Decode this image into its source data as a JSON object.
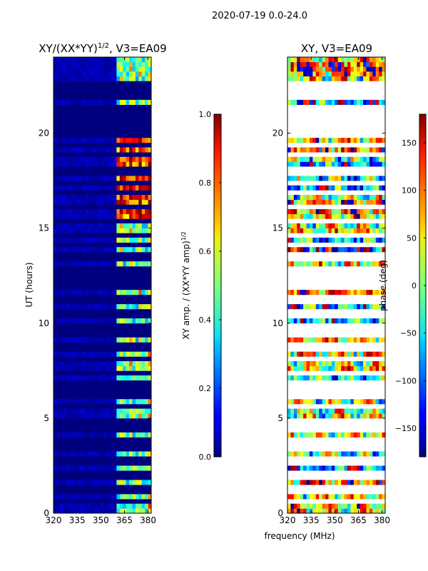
{
  "suptitle": "2020-07-19 0.0-24.0",
  "xlabel": "frequency (MHz)",
  "chart_data": [
    {
      "type": "heatmap",
      "title_main": "XY/(XX*YY)",
      "title_exp": "1/2",
      "title_rest": ", V3=EA09",
      "ylabel": "UT (hours)",
      "xlim": [
        320,
        382
      ],
      "ylim": [
        0,
        24
      ],
      "xticks": [
        "320",
        "335",
        "350",
        "365",
        "380"
      ],
      "xtick_values": [
        320,
        335,
        350,
        365,
        380
      ],
      "yticks": [
        "0",
        "5",
        "10",
        "15",
        "20"
      ],
      "ytick_values": [
        0,
        5,
        10,
        15,
        20
      ],
      "signal_band_mhz": [
        360,
        382
      ],
      "colorbar": {
        "label_main": "XY amp. / (XX*YY amp)",
        "label_exp": "1/2",
        "range": [
          0.0,
          1.0
        ],
        "ticks": [
          "0.0",
          "0.2",
          "0.4",
          "0.6",
          "0.8",
          "1.0"
        ],
        "tick_values": [
          0.0,
          0.2,
          0.4,
          0.6,
          0.8,
          1.0
        ]
      }
    },
    {
      "type": "heatmap",
      "title": "XY, V3=EA09",
      "ylabel": "",
      "xlim": [
        320,
        382
      ],
      "ylim": [
        0,
        24
      ],
      "xticks": [
        "320",
        "335",
        "350",
        "365",
        "380"
      ],
      "xtick_values": [
        320,
        335,
        350,
        365,
        380
      ],
      "yticks": [
        "0",
        "5",
        "10",
        "15",
        "20"
      ],
      "ytick_values": [
        0,
        5,
        10,
        15,
        20
      ],
      "colorbar": {
        "label": "phase (deg)",
        "range": [
          -180,
          180
        ],
        "ticks": [
          "150",
          "100",
          "50",
          "0",
          "−50",
          "−100",
          "−150"
        ],
        "tick_values": [
          150,
          100,
          50,
          0,
          -50,
          -100,
          -150
        ]
      }
    }
  ],
  "flagged_hours": [
    0.6,
    1.1,
    1.4,
    1.9,
    2.05,
    2.2,
    2.6,
    2.9,
    3.3,
    3.6,
    3.9,
    4.3,
    4.55,
    4.7,
    4.9,
    5.6,
    6.1,
    6.5,
    6.9,
    7.3,
    8.1,
    8.6,
    8.85,
    9.3,
    9.7,
    9.9,
    10.3,
    10.55,
    10.7,
    11.1,
    11.4,
    12.0,
    12.15,
    12.35,
    12.5,
    12.8,
    13.3,
    13.7,
    14.2,
    14.6,
    15.3,
    16.2,
    16.9,
    17.4,
    17.9,
    18.2,
    18.8,
    19.3,
    20.0,
    20.5,
    21.0,
    21.4,
    21.9,
    22.2,
    22.4,
    22.6
  ]
}
